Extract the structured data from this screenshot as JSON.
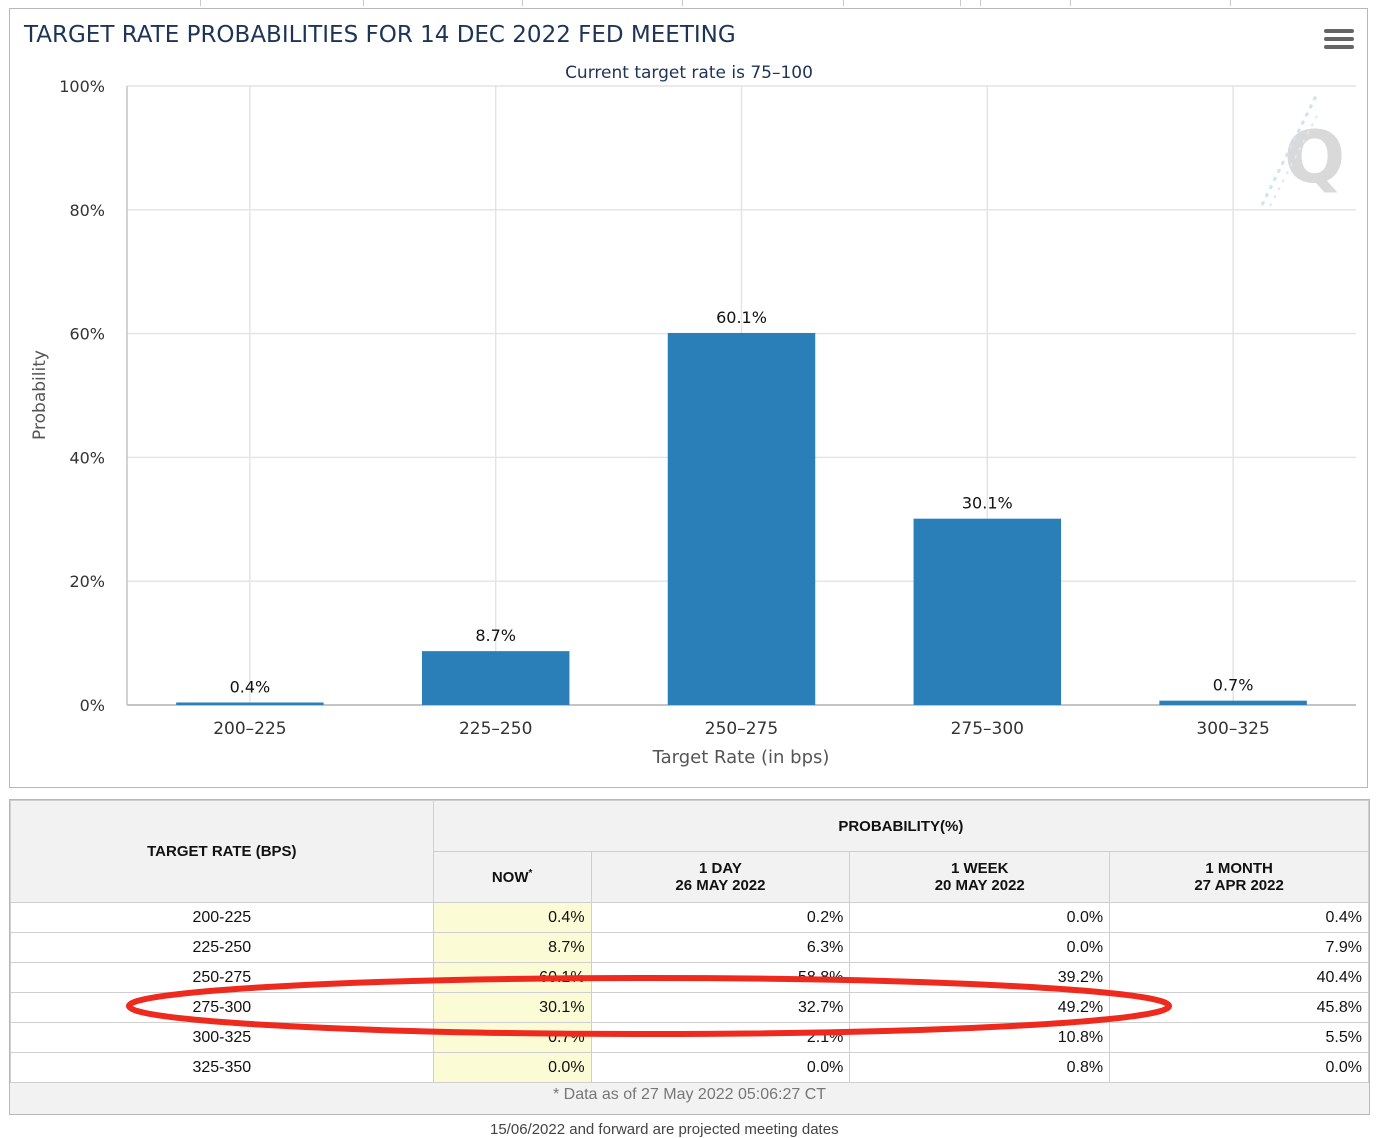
{
  "chart_data": {
    "type": "bar",
    "title": "TARGET RATE PROBABILITIES FOR 14 DEC 2022 FED MEETING",
    "subtitle": "Current target rate is 75–100",
    "xlabel": "Target Rate (in bps)",
    "ylabel": "Probability",
    "categories": [
      "200–225",
      "225–250",
      "250–275",
      "275–300",
      "300–325"
    ],
    "values": [
      0.4,
      8.7,
      60.1,
      30.1,
      0.7
    ],
    "value_labels": [
      "0.4%",
      "8.7%",
      "60.1%",
      "30.1%",
      "0.7%"
    ],
    "ylim": [
      0,
      100
    ],
    "yticks": [
      "0%",
      "20%",
      "40%",
      "60%",
      "80%",
      "100%"
    ],
    "grid": true,
    "bar_color": "#2a7fb8"
  },
  "table": {
    "header_rate": "TARGET RATE (BPS)",
    "header_prob": "PROBABILITY(%)",
    "col_now": "NOW",
    "col_now_mark": "*",
    "col_1day": "1 DAY",
    "col_1day_date": "26 MAY 2022",
    "col_1week": "1 WEEK",
    "col_1week_date": "20 MAY 2022",
    "col_1month": "1 MONTH",
    "col_1month_date": "27 APR 2022",
    "rows": [
      {
        "rate": "200-225",
        "now": "0.4%",
        "day": "0.2%",
        "week": "0.0%",
        "month": "0.4%"
      },
      {
        "rate": "225-250",
        "now": "8.7%",
        "day": "6.3%",
        "week": "0.0%",
        "month": "7.9%"
      },
      {
        "rate": "250-275",
        "now": "60.1%",
        "day": "58.8%",
        "week": "39.2%",
        "month": "40.4%"
      },
      {
        "rate": "275-300",
        "now": "30.1%",
        "day": "32.7%",
        "week": "49.2%",
        "month": "45.8%"
      },
      {
        "rate": "300-325",
        "now": "0.7%",
        "day": "2.1%",
        "week": "10.8%",
        "month": "5.5%"
      },
      {
        "rate": "325-350",
        "now": "0.0%",
        "day": "0.0%",
        "week": "0.8%",
        "month": "0.0%"
      }
    ],
    "note": "* Data as of 27 May 2022 05:06:27 CT"
  },
  "bottom_text": "15/06/2022 and forward are projected meeting dates",
  "highlight_color": "#ee2a1e"
}
